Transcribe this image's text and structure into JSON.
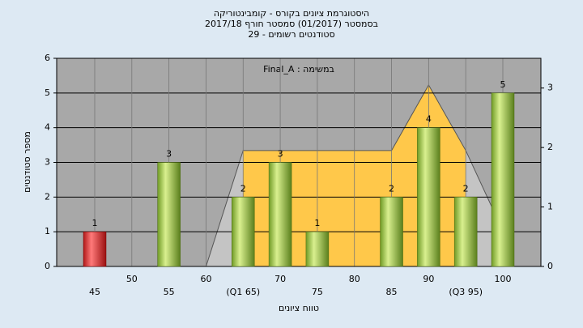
{
  "chart_data": {
    "type": "bar",
    "title": [
      "היסטוגרמת ציונים בקורס - קומבינטוריקה",
      "בסמסטר (01/2017) סמסטר חורף 2017/18",
      "סטודנטים רשומים - 29"
    ],
    "annotation": "במשימה : Final_A",
    "x_label": "טווח ציונים",
    "y_label": "מספר סטודנטים",
    "categories": [
      "45",
      "50",
      "55",
      "60",
      "(Q1 65)",
      "70",
      "75",
      "80",
      "85",
      "90",
      "(Q3 95)",
      "100"
    ],
    "series": [
      {
        "type": "bar",
        "colors": [
          "#d42a2a",
          "#8fbf3a"
        ],
        "values": [
          1,
          null,
          3,
          null,
          2,
          3,
          1,
          null,
          2,
          4,
          2,
          5
        ]
      },
      {
        "type": "area",
        "axis": "y2",
        "color": "#ffc84a",
        "values": [
          null,
          null,
          null,
          0,
          1.95,
          1.95,
          1.95,
          1.95,
          1.95,
          3.05,
          1.95,
          0.6
        ]
      }
    ],
    "ylim": [
      0,
      6
    ],
    "yticks": [
      0,
      1,
      2,
      3,
      4,
      5,
      6
    ],
    "y2lim": [
      0,
      3.5
    ],
    "y2ticks": [
      0,
      1,
      2,
      3
    ],
    "grid": true
  }
}
